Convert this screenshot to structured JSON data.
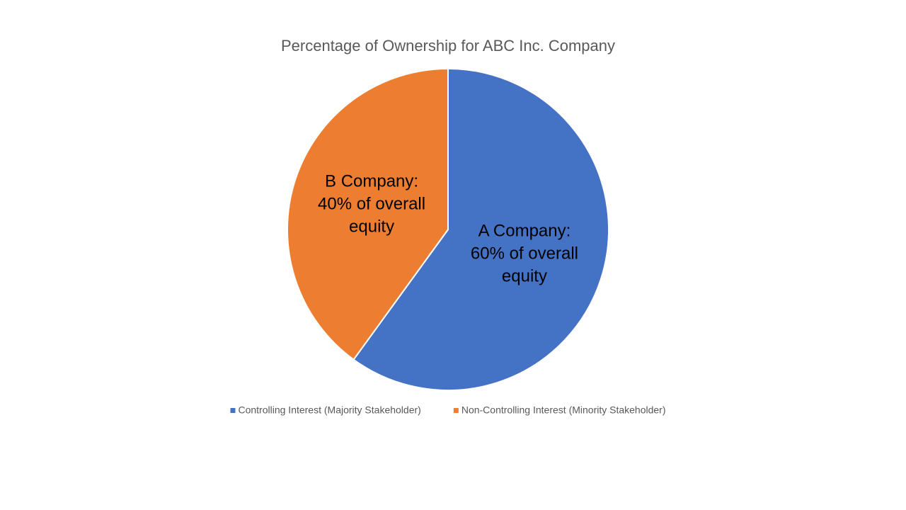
{
  "chart_data": {
    "type": "pie",
    "title": "Percentage of Ownership for ABC Inc. Company",
    "series": [
      {
        "name": "Controlling Interest (Majority Stakeholder)",
        "color": "#4472c4",
        "values": [
          60
        ],
        "value_labels": [
          [
            "A Company:",
            "60% of overall",
            "equity"
          ]
        ]
      },
      {
        "name": "Non-Controlling Interest (Minority Stakeholder)",
        "color": "#ed7d31",
        "values": [
          40
        ],
        "value_labels": [
          [
            "B Company:",
            "40% of overall",
            "equity"
          ]
        ]
      }
    ],
    "legend": "bottom"
  }
}
